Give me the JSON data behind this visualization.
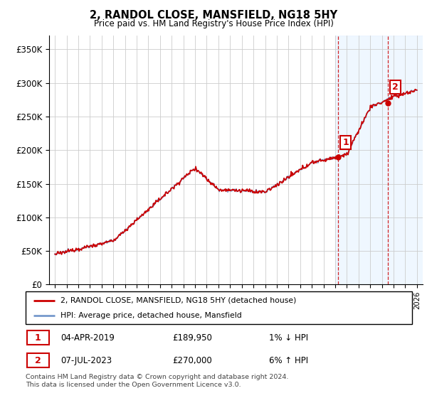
{
  "title": "2, RANDOL CLOSE, MANSFIELD, NG18 5HY",
  "subtitle": "Price paid vs. HM Land Registry's House Price Index (HPI)",
  "ylim": [
    0,
    370000
  ],
  "xlim_start": 1994.5,
  "xlim_end": 2026.5,
  "hpi_color": "#7799cc",
  "price_color": "#cc0000",
  "purchase1": {
    "date_num": 2019.25,
    "price": 189950,
    "label": "1"
  },
  "purchase2": {
    "date_num": 2023.52,
    "price": 270000,
    "label": "2"
  },
  "legend_line1": "2, RANDOL CLOSE, MANSFIELD, NG18 5HY (detached house)",
  "legend_line2": "HPI: Average price, detached house, Mansfield",
  "table_row1": [
    "1",
    "04-APR-2019",
    "£189,950",
    "1% ↓ HPI"
  ],
  "table_row2": [
    "2",
    "07-JUL-2023",
    "£270,000",
    "6% ↑ HPI"
  ],
  "footer": "Contains HM Land Registry data © Crown copyright and database right 2024.\nThis data is licensed under the Open Government Licence v3.0.",
  "grid_color": "#cccccc",
  "shaded_color": "#ddeeff",
  "yticks": [
    0,
    50000,
    100000,
    150000,
    200000,
    250000,
    300000,
    350000
  ],
  "ylabels": [
    "£0",
    "£50K",
    "£100K",
    "£150K",
    "£200K",
    "£250K",
    "£300K",
    "£350K"
  ]
}
